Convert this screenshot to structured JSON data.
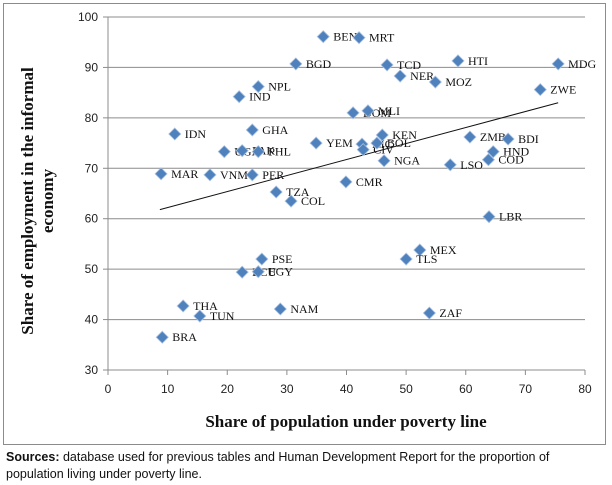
{
  "chart_data": {
    "type": "scatter",
    "title": "",
    "xlabel": "Share of population under poverty line",
    "ylabel_lines": [
      "Share of employment in the informal",
      "economy"
    ],
    "xlim": [
      0,
      80
    ],
    "ylim": [
      30,
      100
    ],
    "xticks": [
      0,
      10,
      20,
      30,
      40,
      50,
      60,
      70,
      80
    ],
    "yticks": [
      30,
      40,
      50,
      60,
      70,
      80,
      90,
      100
    ],
    "grid": "horizontal",
    "legend": "none",
    "marker_color": "#4f81bd",
    "points": [
      {
        "label": "BEN",
        "x": 36.1,
        "y": 96.1
      },
      {
        "label": "MRT",
        "x": 42.1,
        "y": 95.9
      },
      {
        "label": "BGD",
        "x": 31.5,
        "y": 90.7
      },
      {
        "label": "TCD",
        "x": 46.8,
        "y": 90.5
      },
      {
        "label": "HTI",
        "x": 58.7,
        "y": 91.3
      },
      {
        "label": "MDG",
        "x": 75.5,
        "y": 90.7
      },
      {
        "label": "NER",
        "x": 49.0,
        "y": 88.3
      },
      {
        "label": "MOZ",
        "x": 54.9,
        "y": 87.1
      },
      {
        "label": "NPL",
        "x": 25.2,
        "y": 86.2
      },
      {
        "label": "IND",
        "x": 22.0,
        "y": 84.2
      },
      {
        "label": "ZWE",
        "x": 72.5,
        "y": 85.6
      },
      {
        "label": "DOM",
        "x": 41.1,
        "y": 81.0
      },
      {
        "label": "MLI",
        "x": 43.6,
        "y": 81.4
      },
      {
        "label": "IDN",
        "x": 11.2,
        "y": 76.8
      },
      {
        "label": "GHA",
        "x": 24.2,
        "y": 77.6
      },
      {
        "label": "UGA",
        "x": 19.5,
        "y": 73.3
      },
      {
        "label": "PAK",
        "x": 22.5,
        "y": 73.5
      },
      {
        "label": "PHL",
        "x": 25.2,
        "y": 73.3
      },
      {
        "label": "YEM",
        "x": 34.9,
        "y": 75.0
      },
      {
        "label": "NIC",
        "x": 42.6,
        "y": 74.8
      },
      {
        "label": "CIV",
        "x": 42.8,
        "y": 73.7
      },
      {
        "label": "KEN",
        "x": 46.0,
        "y": 76.6
      },
      {
        "label": "BOL",
        "x": 45.1,
        "y": 75.0
      },
      {
        "label": "NGA",
        "x": 46.3,
        "y": 71.5
      },
      {
        "label": "ZMB",
        "x": 60.7,
        "y": 76.2
      },
      {
        "label": "BDI",
        "x": 67.1,
        "y": 75.8
      },
      {
        "label": "HND",
        "x": 64.6,
        "y": 73.3
      },
      {
        "label": "COD",
        "x": 63.8,
        "y": 71.7
      },
      {
        "label": "LSO",
        "x": 57.4,
        "y": 70.7
      },
      {
        "label": "MAR",
        "x": 8.9,
        "y": 68.9
      },
      {
        "label": "VNM",
        "x": 17.1,
        "y": 68.7
      },
      {
        "label": "PER",
        "x": 24.2,
        "y": 68.7
      },
      {
        "label": "CMR",
        "x": 39.9,
        "y": 67.3
      },
      {
        "label": "TZA",
        "x": 28.2,
        "y": 65.3
      },
      {
        "label": "COL",
        "x": 30.7,
        "y": 63.5
      },
      {
        "label": "LBR",
        "x": 63.9,
        "y": 60.4
      },
      {
        "label": "MEX",
        "x": 52.3,
        "y": 53.8
      },
      {
        "label": "TLS",
        "x": 50.0,
        "y": 52.0
      },
      {
        "label": "PSE",
        "x": 25.8,
        "y": 52.0
      },
      {
        "label": "ECU",
        "x": 22.5,
        "y": 49.4
      },
      {
        "label": "EGY",
        "x": 25.2,
        "y": 49.5
      },
      {
        "label": "THA",
        "x": 12.6,
        "y": 42.7
      },
      {
        "label": "TUN",
        "x": 15.4,
        "y": 40.7
      },
      {
        "label": "NAM",
        "x": 28.9,
        "y": 42.1
      },
      {
        "label": "ZAF",
        "x": 53.9,
        "y": 41.3
      },
      {
        "label": "BRA",
        "x": 9.1,
        "y": 36.5
      }
    ],
    "trendline": {
      "x": [
        8.7,
        75.5
      ],
      "y": [
        61.8,
        83.0
      ]
    }
  },
  "sources": {
    "prefix": "Sources:",
    "text": " database used for previous tables and Human Development Report for the proportion of population living under poverty line."
  }
}
